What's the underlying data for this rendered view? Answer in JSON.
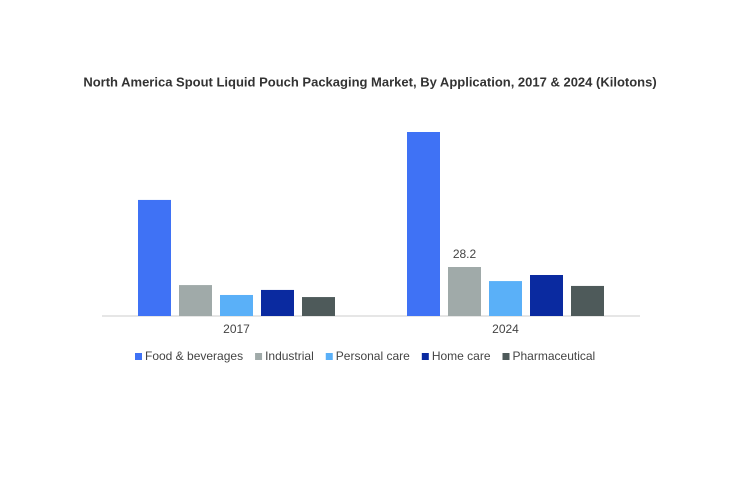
{
  "chart_data": {
    "type": "bar",
    "title": "North America Spout Liquid Pouch Packaging Market, By Application, 2017 & 2024 (Kilotons)",
    "categories": [
      "2017",
      "2024"
    ],
    "series": [
      {
        "name": "Food & beverages",
        "color": "#3f72f5",
        "values": [
          66.8,
          105.9
        ]
      },
      {
        "name": "Industrial",
        "color": "#a0aaa9",
        "values": [
          17.8,
          28.2
        ],
        "show_labels": [
          false,
          true
        ]
      },
      {
        "name": "Personal care",
        "color": "#5ab0f8",
        "values": [
          12.1,
          20.1
        ]
      },
      {
        "name": "Home care",
        "color": "#0a2aa0",
        "values": [
          15.0,
          23.6
        ]
      },
      {
        "name": "Pharmaceutical",
        "color": "#4e5a5a",
        "values": [
          10.9,
          17.3
        ]
      }
    ]
  }
}
